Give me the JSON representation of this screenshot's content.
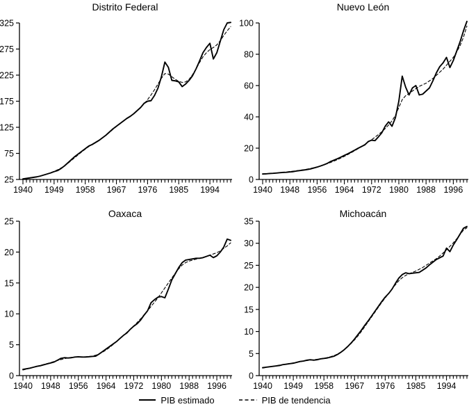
{
  "page": {
    "background_color": "#ffffff",
    "foreground_color": "#000000"
  },
  "legend": {
    "position": "bottom-center"
  },
  "chart_data": [
    {
      "id": "distrito-federal",
      "type": "line",
      "title": "Distrito Federal",
      "x_range": [
        1940,
        2000
      ],
      "x_step": 1,
      "x_tick_labels": [
        1940,
        1949,
        1958,
        1967,
        1976,
        1985,
        1994
      ],
      "ylim": [
        25,
        325
      ],
      "yticks": [
        25,
        75,
        125,
        175,
        225,
        275,
        325
      ],
      "grid": false,
      "series": [
        {
          "name": "PIB estimado",
          "style": "solid",
          "values": [
            26,
            27,
            28,
            29,
            30,
            31.5,
            33.5,
            35.5,
            37.5,
            40,
            42,
            46,
            51,
            57,
            63,
            69,
            74,
            79,
            84,
            89,
            92,
            96,
            100,
            105,
            110,
            116,
            122,
            127,
            132,
            137,
            142,
            146,
            151,
            157,
            163,
            171,
            175,
            176,
            186,
            200,
            222,
            250,
            240,
            215,
            214,
            212,
            203,
            208,
            215,
            224,
            237,
            252,
            268,
            278,
            286,
            256,
            268,
            290,
            312,
            325,
            326
          ]
        },
        {
          "name": "PIB de tendencia",
          "style": "dashed",
          "values": [
            25.5,
            26.5,
            27.5,
            28.5,
            30,
            31.5,
            33.5,
            35.5,
            38,
            40.5,
            43.5,
            47,
            51,
            56,
            61.5,
            67,
            72.5,
            78,
            83,
            88,
            92.5,
            96.5,
            100.5,
            105,
            110,
            115.5,
            121,
            126.5,
            131.5,
            136.5,
            141.5,
            146,
            151,
            156.5,
            163,
            170,
            178,
            187,
            197,
            208,
            219,
            228,
            227,
            222,
            217,
            213,
            211,
            212,
            217,
            226,
            237,
            249,
            260,
            268,
            274,
            278,
            283,
            291,
            301,
            310,
            318
          ]
        }
      ]
    },
    {
      "id": "nuevo-leon",
      "type": "line",
      "title": "Nuevo León",
      "x_range": [
        1940,
        2000
      ],
      "x_step": 1,
      "x_tick_labels": [
        1940,
        1948,
        1956,
        1964,
        1972,
        1980,
        1988,
        1996
      ],
      "ylim": [
        0,
        100
      ],
      "yticks": [
        0,
        20,
        40,
        60,
        80,
        100
      ],
      "grid": false,
      "series": [
        {
          "name": "PIB estimado",
          "style": "solid",
          "values": [
            3.5,
            3.6,
            3.8,
            3.9,
            4.1,
            4.3,
            4.5,
            4.6,
            4.8,
            5.0,
            5.4,
            5.7,
            6.0,
            6.3,
            6.7,
            7.3,
            7.9,
            8.6,
            9.4,
            10.3,
            11.5,
            12.4,
            13.3,
            14.3,
            15.4,
            16.4,
            17.5,
            18.7,
            19.9,
            21.0,
            22.1,
            24.2,
            25.1,
            24.8,
            27.2,
            29.8,
            34.0,
            36.8,
            34.0,
            39.5,
            50.0,
            66.0,
            59.0,
            54.0,
            58.5,
            60.0,
            54.0,
            54.5,
            56.5,
            58.5,
            63.0,
            68.0,
            72.0,
            74.5,
            78.0,
            71.5,
            76.0,
            82.0,
            88.0,
            95.0,
            101.0
          ]
        },
        {
          "name": "PIB de tendencia",
          "style": "dashed",
          "values": [
            3.3,
            3.5,
            3.7,
            3.9,
            4.1,
            4.3,
            4.6,
            4.8,
            5.1,
            5.3,
            5.6,
            5.9,
            6.2,
            6.6,
            7.0,
            7.5,
            8.0,
            8.6,
            9.3,
            10.1,
            10.9,
            11.8,
            12.7,
            13.7,
            14.8,
            15.9,
            17.1,
            18.3,
            19.6,
            21.0,
            22.4,
            23.9,
            25.4,
            27.0,
            28.7,
            30.5,
            32.5,
            34.8,
            37.5,
            41.0,
            46.0,
            51.0,
            53.5,
            55.0,
            56.5,
            58.0,
            59.5,
            60.5,
            61.5,
            63.0,
            64.5,
            66.5,
            68.5,
            70.5,
            73.0,
            75.5,
            78.0,
            81.5,
            85.5,
            91.0,
            98.0
          ]
        }
      ]
    },
    {
      "id": "oaxaca",
      "type": "line",
      "title": "Oaxaca",
      "x_range": [
        1940,
        2000
      ],
      "x_step": 1,
      "x_tick_labels": [
        1940,
        1948,
        1956,
        1964,
        1972,
        1980,
        1988,
        1996
      ],
      "ylim": [
        0,
        25
      ],
      "yticks": [
        0,
        5,
        10,
        15,
        20,
        25
      ],
      "grid": false,
      "series": [
        {
          "name": "PIB estimado",
          "style": "solid",
          "values": [
            1.0,
            1.1,
            1.2,
            1.35,
            1.5,
            1.6,
            1.75,
            1.9,
            2.05,
            2.2,
            2.5,
            2.8,
            2.9,
            2.85,
            2.9,
            3.0,
            3.05,
            3.0,
            3.0,
            3.05,
            3.1,
            3.15,
            3.5,
            3.9,
            4.3,
            4.7,
            5.1,
            5.5,
            6.0,
            6.5,
            6.9,
            7.5,
            8.0,
            8.4,
            9.0,
            9.8,
            10.5,
            11.8,
            12.3,
            12.7,
            12.8,
            12.6,
            14.0,
            15.5,
            16.5,
            17.5,
            18.3,
            18.7,
            18.8,
            18.9,
            19.0,
            19.0,
            19.1,
            19.3,
            19.5,
            19.1,
            19.4,
            20.0,
            20.8,
            22.1,
            21.9
          ]
        },
        {
          "name": "PIB de tendencia",
          "style": "dashed",
          "values": [
            0.9,
            1.05,
            1.2,
            1.35,
            1.5,
            1.65,
            1.8,
            1.95,
            2.1,
            2.3,
            2.45,
            2.6,
            2.75,
            2.85,
            2.95,
            3.0,
            3.05,
            3.05,
            3.05,
            3.1,
            3.15,
            3.3,
            3.5,
            3.8,
            4.15,
            4.55,
            5.0,
            5.5,
            6.0,
            6.5,
            7.0,
            7.5,
            8.05,
            8.6,
            9.2,
            9.85,
            10.5,
            11.2,
            11.9,
            12.6,
            13.4,
            14.2,
            15.0,
            15.8,
            16.6,
            17.3,
            17.9,
            18.3,
            18.55,
            18.7,
            18.85,
            19.0,
            19.15,
            19.3,
            19.5,
            19.7,
            19.9,
            20.2,
            20.6,
            21.0,
            21.5
          ]
        }
      ]
    },
    {
      "id": "michoacan",
      "type": "line",
      "title": "Michoacán",
      "x_range": [
        1940,
        2000
      ],
      "x_step": 1,
      "x_tick_labels": [
        1940,
        1949,
        1958,
        1967,
        1976,
        1985,
        1994
      ],
      "ylim": [
        0,
        35
      ],
      "yticks": [
        0,
        5,
        10,
        15,
        20,
        25,
        30,
        35
      ],
      "grid": false,
      "series": [
        {
          "name": "PIB estimado",
          "style": "solid",
          "values": [
            1.8,
            1.9,
            2.0,
            2.1,
            2.2,
            2.3,
            2.5,
            2.6,
            2.7,
            2.8,
            3.0,
            3.2,
            3.3,
            3.5,
            3.6,
            3.5,
            3.6,
            3.8,
            3.9,
            4.0,
            4.2,
            4.4,
            4.8,
            5.3,
            5.9,
            6.6,
            7.4,
            8.3,
            9.3,
            10.3,
            11.4,
            12.4,
            13.5,
            14.6,
            15.7,
            16.8,
            17.8,
            18.6,
            19.6,
            20.9,
            22.1,
            22.9,
            23.3,
            23.1,
            23.2,
            23.3,
            23.4,
            23.9,
            24.4,
            25.1,
            25.7,
            26.3,
            26.7,
            27.1,
            28.9,
            28.1,
            29.6,
            30.8,
            32.1,
            33.4,
            33.8
          ]
        },
        {
          "name": "PIB de tendencia",
          "style": "dashed",
          "values": [
            1.7,
            1.85,
            2.0,
            2.1,
            2.25,
            2.4,
            2.5,
            2.65,
            2.75,
            2.9,
            3.0,
            3.15,
            3.3,
            3.4,
            3.5,
            3.6,
            3.7,
            3.8,
            3.95,
            4.1,
            4.3,
            4.55,
            4.9,
            5.35,
            5.9,
            6.55,
            7.3,
            8.1,
            9.0,
            10.0,
            11.1,
            12.2,
            13.3,
            14.4,
            15.5,
            16.6,
            17.6,
            18.6,
            19.6,
            20.6,
            21.5,
            22.2,
            22.7,
            23.1,
            23.4,
            23.7,
            24.1,
            24.5,
            25.0,
            25.5,
            26.0,
            26.5,
            27.1,
            27.8,
            28.5,
            29.3,
            30.1,
            31.0,
            32.0,
            33.0,
            33.5
          ]
        }
      ]
    }
  ]
}
